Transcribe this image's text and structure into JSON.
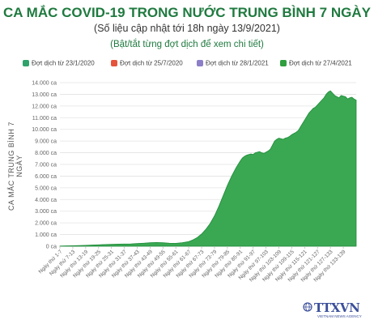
{
  "header": {
    "title": "CA MẮC COVID-19 TRONG NƯỚC TRUNG BÌNH 7 NGÀY",
    "subtitle": "(Số liệu cập nhật tới 18h ngày 13/9/2021)",
    "hint": "(Bật/tắt từng đợt dịch để xem chi tiết)"
  },
  "legend": [
    {
      "label": "Đợt dịch từ 23/1/2020",
      "color": "#2fa36b"
    },
    {
      "label": "Đợt dịch từ 25/7/2020",
      "color": "#e5533d"
    },
    {
      "label": "Đợt dịch từ 28/1/2021",
      "color": "#8c7fc7"
    },
    {
      "label": "Đợt dịch từ 27/4/2021",
      "color": "#2e9e3e"
    }
  ],
  "logo": {
    "text": "TTXVN",
    "sub": "VIETNAM NEWS AGENCY"
  },
  "colors": {
    "area_fill": "#3aa752",
    "area_stroke": "#1e8c3a",
    "grid": "#e3e3e3",
    "title": "#1f7a3f"
  },
  "chart_data": {
    "type": "area",
    "ylabel": "CA MẮC TRUNG BÌNH 7 NGÀY",
    "ylim": [
      0,
      14000
    ],
    "yticks": [
      0,
      1000,
      2000,
      3000,
      4000,
      5000,
      6000,
      7000,
      8000,
      9000,
      10000,
      11000,
      12000,
      13000,
      14000
    ],
    "ytick_labels": [
      "0 ca",
      "1.000 ca",
      "2.000 ca",
      "3.000 ca",
      "4.000 ca",
      "5.000 ca",
      "6.000 ca",
      "7.000 ca",
      "8.000 ca",
      "9.000 ca",
      "10.000 ca",
      "11.000 ca",
      "12.000 ca",
      "13.000 ca",
      "14.000 ca"
    ],
    "xtick_labels": [
      "Ngày thứ 1-7",
      "Ngày thứ 7-13",
      "Ngày thứ 13-19",
      "Ngày thứ 19-25",
      "Ngày thứ 25-31",
      "Ngày thứ 31-37",
      "Ngày thứ 37-43",
      "Ngày thứ 43-49",
      "Ngày thứ 49-55",
      "Ngày thứ 55-61",
      "Ngày thứ 61-67",
      "Ngày thứ 67-73",
      "Ngày thứ 73-79",
      "Ngày thứ 79-85",
      "Ngày thứ 85-91",
      "Ngày thứ 91-97",
      "Ngày thứ 97-103",
      "Ngày thứ 103-109",
      "Ngày thứ 109-115",
      "Ngày thứ 115-121",
      "Ngày thứ 121-127",
      "Ngày thứ 127-133",
      "Ngày thứ 133-139"
    ],
    "series": [
      {
        "name": "Đợt dịch từ 27/4/2021",
        "x": [
          1,
          4,
          7,
          10,
          13,
          16,
          19,
          22,
          25,
          28,
          31,
          34,
          37,
          40,
          43,
          46,
          49,
          52,
          55,
          58,
          61,
          63,
          65,
          67,
          69,
          71,
          73,
          75,
          77,
          79,
          81,
          83,
          85,
          86,
          87,
          88,
          89,
          90,
          91,
          92,
          93,
          94,
          95,
          96,
          97,
          98,
          99,
          100,
          101,
          102,
          103,
          104,
          105,
          106,
          107,
          108,
          109,
          110,
          111,
          112,
          113,
          114,
          115,
          116,
          117,
          118,
          119,
          120,
          121,
          122,
          123,
          124,
          125,
          126,
          127,
          128,
          129,
          130,
          131,
          132,
          133,
          134,
          135,
          136,
          137,
          138,
          139
        ],
        "values": [
          20,
          30,
          40,
          60,
          80,
          100,
          120,
          150,
          160,
          180,
          190,
          200,
          230,
          260,
          300,
          320,
          300,
          260,
          250,
          300,
          400,
          550,
          750,
          1050,
          1450,
          1950,
          2600,
          3400,
          4300,
          5200,
          6000,
          6700,
          7300,
          7550,
          7700,
          7800,
          7850,
          7900,
          7850,
          8000,
          8050,
          8100,
          8000,
          7950,
          8050,
          8150,
          8300,
          8650,
          9000,
          9150,
          9250,
          9200,
          9150,
          9250,
          9300,
          9400,
          9550,
          9650,
          9750,
          9900,
          10200,
          10500,
          10800,
          11100,
          11400,
          11600,
          11800,
          11900,
          12100,
          12300,
          12500,
          12700,
          13000,
          13200,
          13300,
          13100,
          12900,
          12800,
          12700,
          12900,
          12850,
          12800,
          12600,
          12700,
          12750,
          12600,
          12500
        ]
      }
    ]
  }
}
